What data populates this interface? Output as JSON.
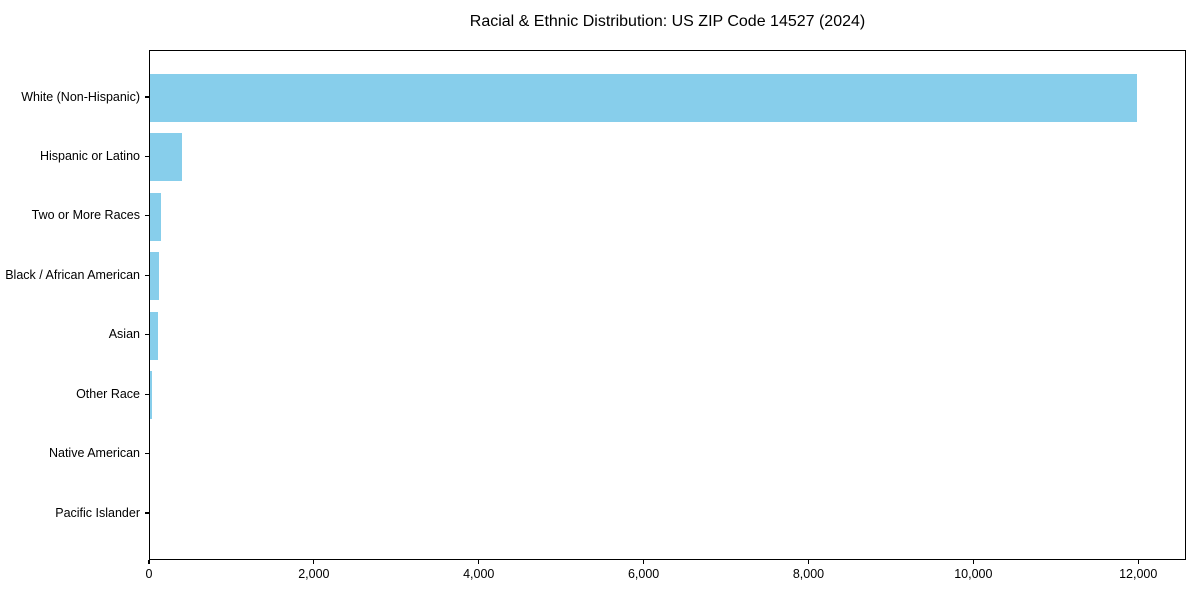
{
  "title": "Racial & Ethnic Distribution: US ZIP Code 14527 (2024)",
  "chart_data": {
    "type": "bar",
    "orientation": "horizontal",
    "title": "Racial & Ethnic Distribution: US ZIP Code 14527 (2024)",
    "categories": [
      "White (Non-Hispanic)",
      "Hispanic or Latino",
      "Two or More Races",
      "Black / African American",
      "Asian",
      "Other Race",
      "Native American",
      "Pacific Islander"
    ],
    "values": [
      11975,
      385,
      135,
      105,
      95,
      20,
      0,
      0
    ],
    "xlabel": "",
    "ylabel": "",
    "xlim": [
      0,
      12580
    ],
    "x_ticks": [
      0,
      2000,
      4000,
      6000,
      8000,
      10000,
      12000
    ],
    "x_tick_labels": [
      "0",
      "2,000",
      "4,000",
      "6,000",
      "8,000",
      "10,000",
      "12,000"
    ],
    "bar_color": "#87CEEB",
    "axis_color": "#000000",
    "text_color": "#000000",
    "grid": false,
    "legend": null,
    "largest_bar_on_top": true
  }
}
